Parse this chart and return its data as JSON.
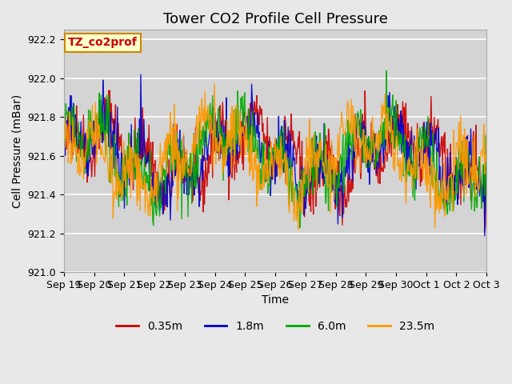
{
  "title": "Tower CO2 Profile Cell Pressure",
  "ylabel": "Cell Pressure (mBar)",
  "xlabel": "Time",
  "annotation": "TZ_co2prof",
  "ylim": [
    921.0,
    922.25
  ],
  "yticks": [
    921.0,
    921.2,
    921.4,
    921.6,
    921.8,
    922.0,
    922.2
  ],
  "xtick_labels": [
    "Sep 19",
    "Sep 20",
    "Sep 21",
    "Sep 22",
    "Sep 23",
    "Sep 24",
    "Sep 25",
    "Sep 26",
    "Sep 27",
    "Sep 28",
    "Sep 29",
    "Sep 30",
    "Oct 1",
    "Oct 2",
    "Oct 3"
  ],
  "series": [
    {
      "label": "0.35m",
      "color": "#cc0000"
    },
    {
      "label": "1.8m",
      "color": "#0000cc"
    },
    {
      "label": "6.0m",
      "color": "#00aa00"
    },
    {
      "label": "23.5m",
      "color": "#ff9900"
    }
  ],
  "n_days": 14,
  "points_per_day": 48,
  "base_pressure": 921.6,
  "amplitude": 0.35,
  "bg_color": "#e8e8e8",
  "plot_bg_color": "#d4d4d4",
  "grid_color": "#ffffff",
  "title_fontsize": 13,
  "label_fontsize": 10,
  "tick_fontsize": 9,
  "legend_fontsize": 10,
  "linewidth": 1.0,
  "seed": 42
}
